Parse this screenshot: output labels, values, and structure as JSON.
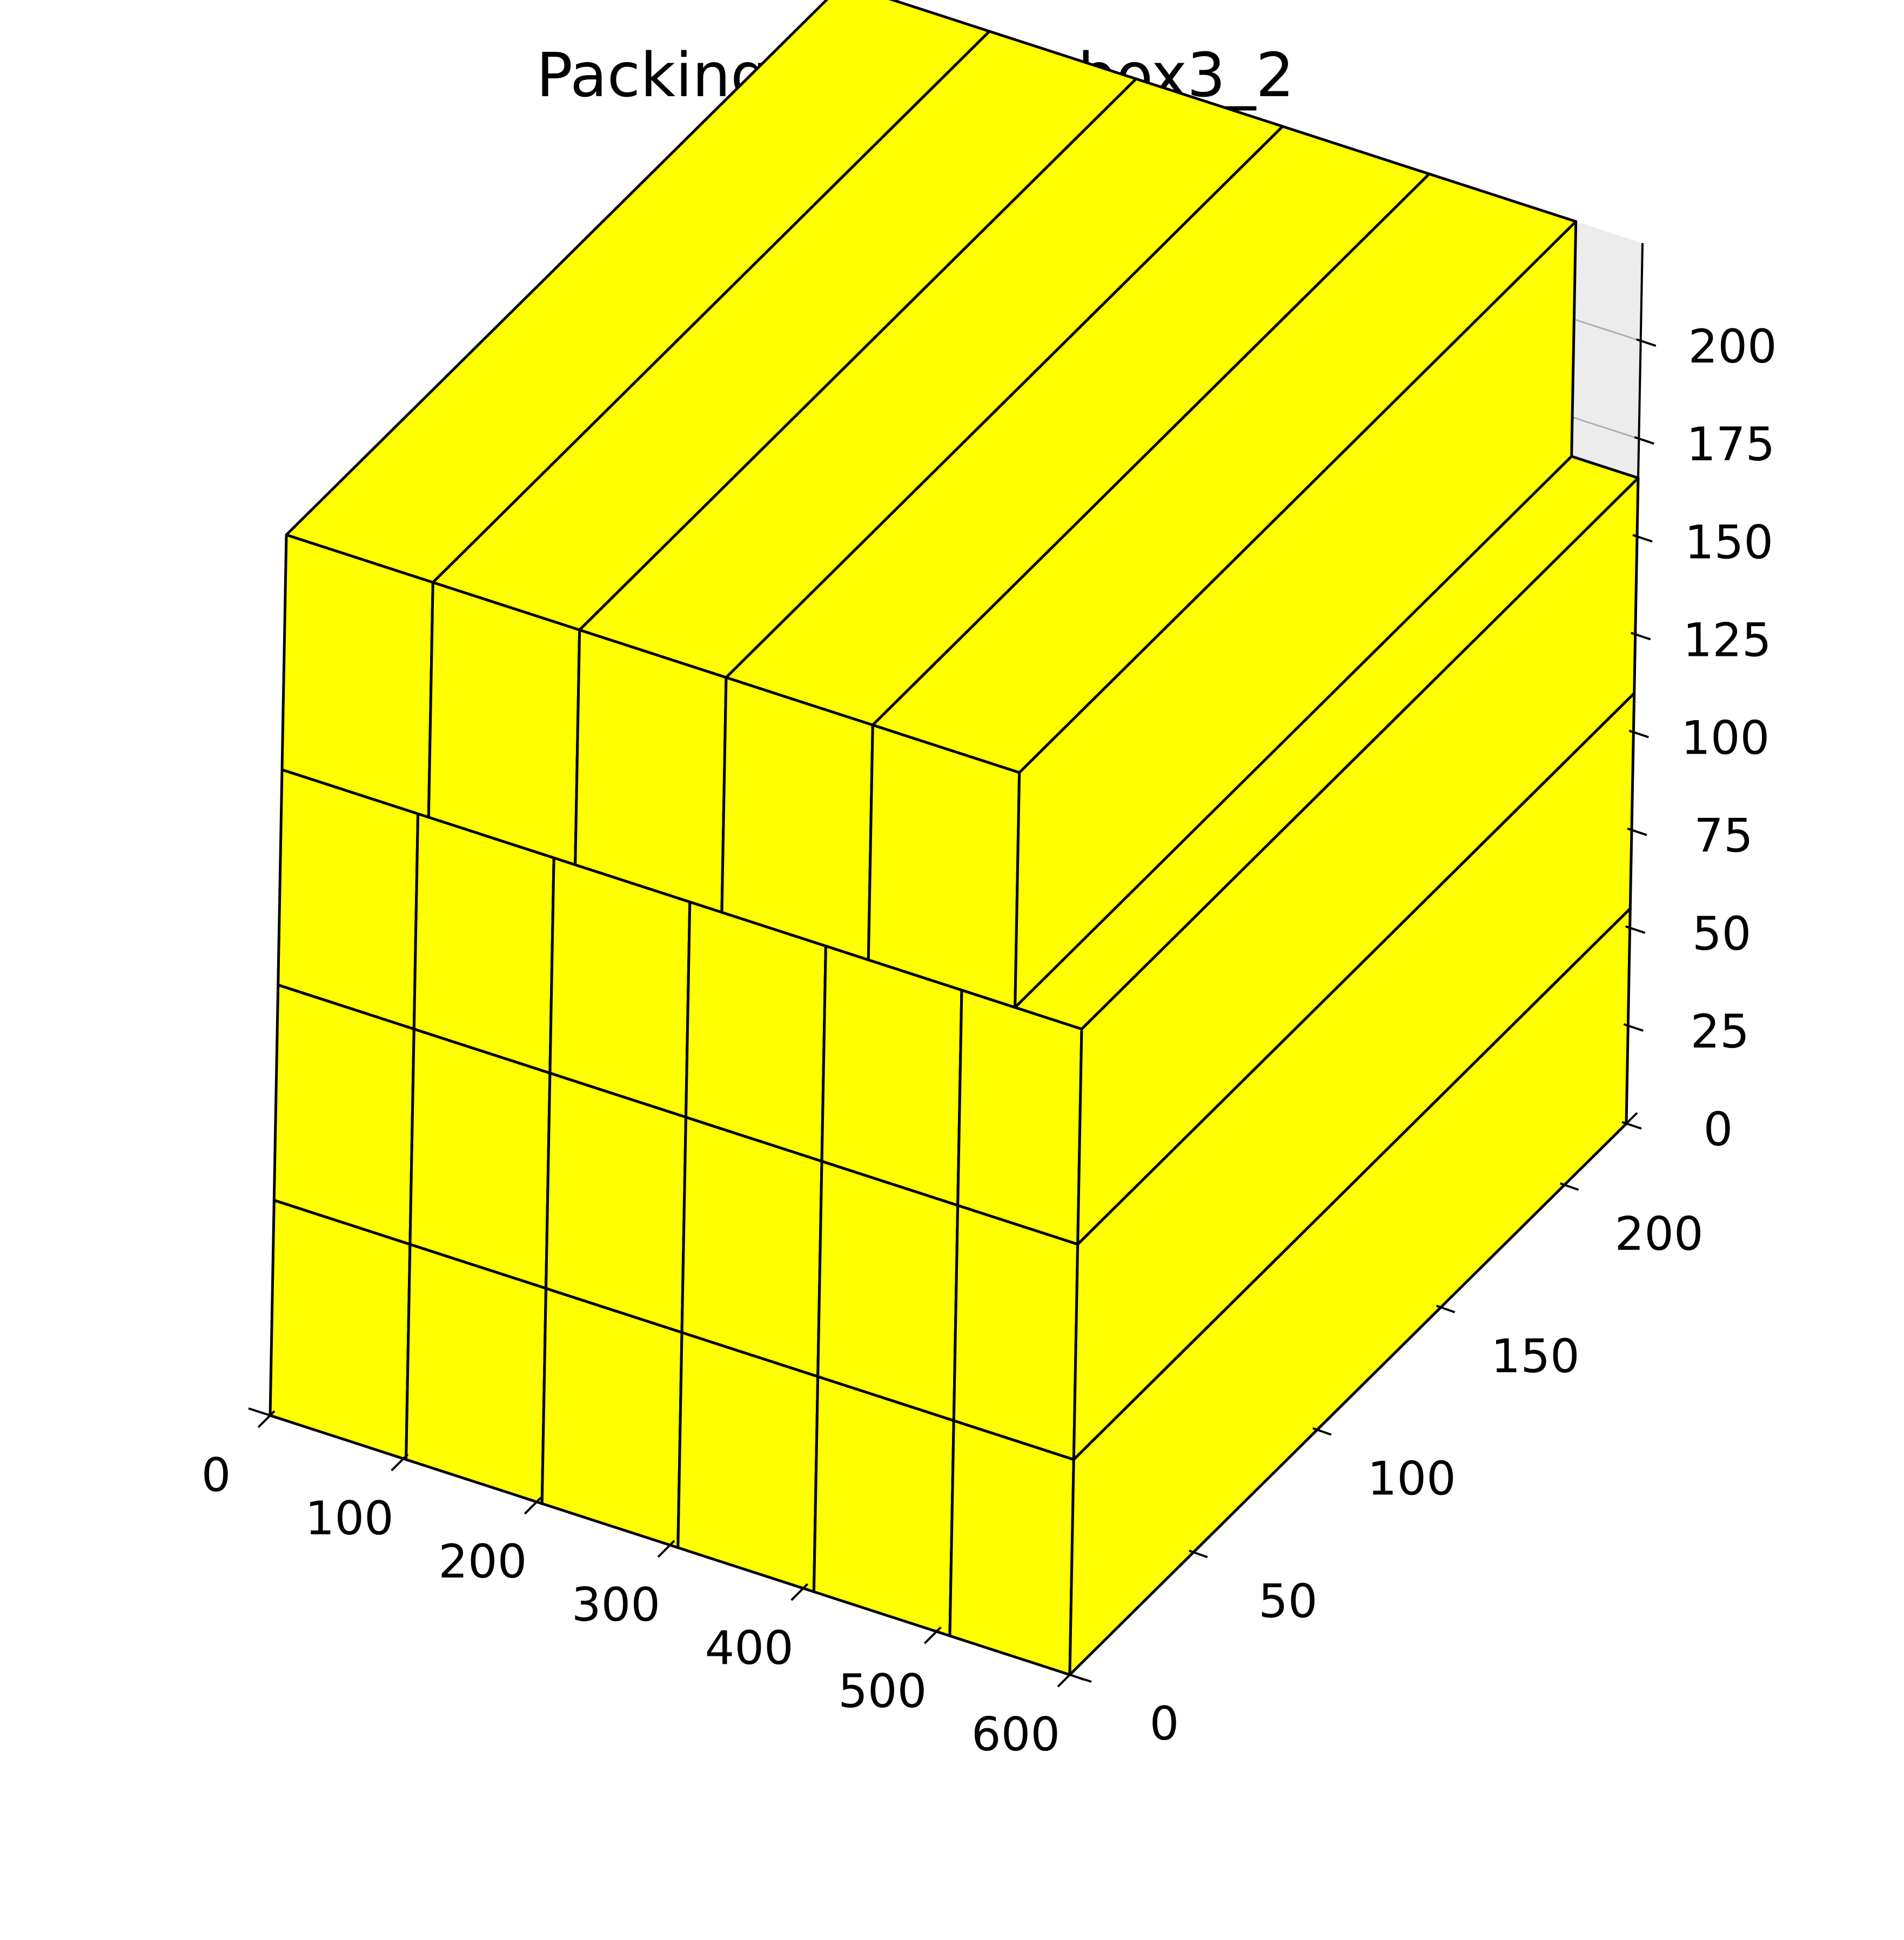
{
  "chart_data": {
    "type": "3d-bar",
    "title": "PackingResult for box3_2",
    "box_color": "#ffff00",
    "edge_color": "#000000",
    "xlabel": "",
    "ylabel": "",
    "zlabel": "",
    "xlim": [
      0,
      600
    ],
    "ylim": [
      0,
      225
    ],
    "zlim": [
      0,
      225
    ],
    "x_ticks": [
      "0",
      "100",
      "200",
      "300",
      "400",
      "500",
      "600"
    ],
    "y_ticks": [
      "0",
      "50",
      "100",
      "150",
      "200"
    ],
    "z_ticks": [
      "0",
      "25",
      "50",
      "75",
      "100",
      "125",
      "150",
      "175",
      "200"
    ],
    "grid": true,
    "boxes": [
      {
        "x": [
          0,
          102
        ],
        "y": [
          0,
          225
        ],
        "z": [
          0,
          55
        ]
      },
      {
        "x": [
          0,
          102
        ],
        "y": [
          0,
          225
        ],
        "z": [
          55,
          110
        ]
      },
      {
        "x": [
          0,
          102
        ],
        "y": [
          0,
          225
        ],
        "z": [
          110,
          165
        ]
      },
      {
        "x": [
          102,
          204
        ],
        "y": [
          0,
          225
        ],
        "z": [
          0,
          55
        ]
      },
      {
        "x": [
          102,
          204
        ],
        "y": [
          0,
          225
        ],
        "z": [
          55,
          110
        ]
      },
      {
        "x": [
          102,
          204
        ],
        "y": [
          0,
          225
        ],
        "z": [
          110,
          165
        ]
      },
      {
        "x": [
          204,
          306
        ],
        "y": [
          0,
          225
        ],
        "z": [
          0,
          55
        ]
      },
      {
        "x": [
          204,
          306
        ],
        "y": [
          0,
          225
        ],
        "z": [
          55,
          110
        ]
      },
      {
        "x": [
          204,
          306
        ],
        "y": [
          0,
          225
        ],
        "z": [
          110,
          165
        ]
      },
      {
        "x": [
          306,
          408
        ],
        "y": [
          0,
          225
        ],
        "z": [
          0,
          55
        ]
      },
      {
        "x": [
          306,
          408
        ],
        "y": [
          0,
          225
        ],
        "z": [
          55,
          110
        ]
      },
      {
        "x": [
          306,
          408
        ],
        "y": [
          0,
          225
        ],
        "z": [
          110,
          165
        ]
      },
      {
        "x": [
          408,
          510
        ],
        "y": [
          0,
          225
        ],
        "z": [
          0,
          55
        ]
      },
      {
        "x": [
          408,
          510
        ],
        "y": [
          0,
          225
        ],
        "z": [
          55,
          110
        ]
      },
      {
        "x": [
          408,
          510
        ],
        "y": [
          0,
          225
        ],
        "z": [
          110,
          165
        ]
      },
      {
        "x": [
          510,
          600
        ],
        "y": [
          0,
          225
        ],
        "z": [
          0,
          55
        ]
      },
      {
        "x": [
          510,
          600
        ],
        "y": [
          0,
          225
        ],
        "z": [
          55,
          110
        ]
      },
      {
        "x": [
          510,
          600
        ],
        "y": [
          0,
          225
        ],
        "z": [
          110,
          165
        ]
      },
      {
        "x": [
          0,
          110
        ],
        "y": [
          0,
          225
        ],
        "z": [
          165,
          225
        ]
      },
      {
        "x": [
          110,
          220
        ],
        "y": [
          0,
          225
        ],
        "z": [
          165,
          225
        ]
      },
      {
        "x": [
          220,
          330
        ],
        "y": [
          0,
          225
        ],
        "z": [
          165,
          225
        ]
      },
      {
        "x": [
          330,
          440
        ],
        "y": [
          0,
          225
        ],
        "z": [
          165,
          225
        ]
      },
      {
        "x": [
          440,
          550
        ],
        "y": [
          0,
          225
        ],
        "z": [
          165,
          225
        ]
      }
    ]
  }
}
